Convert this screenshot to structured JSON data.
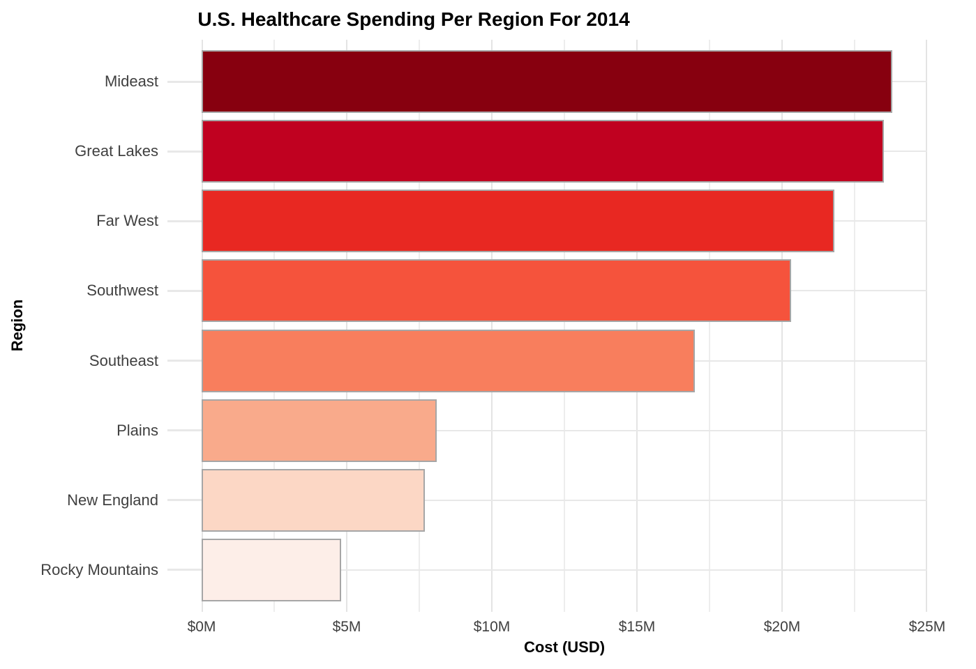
{
  "title": "U.S. Healthcare Spending Per Region For 2014",
  "chart_data": {
    "type": "bar",
    "orientation": "horizontal",
    "title": "U.S. Healthcare Spending Per Region For 2014",
    "xlabel": "Cost (USD)",
    "ylabel": "Region",
    "categories": [
      "Mideast",
      "Great Lakes",
      "Far West",
      "Southwest",
      "Southeast",
      "Plains",
      "New England",
      "Rocky Mountains"
    ],
    "values_million_usd": [
      23.8,
      23.5,
      21.8,
      20.3,
      17.0,
      8.1,
      7.7,
      4.8
    ],
    "bar_colors": [
      "#87000f",
      "#c00120",
      "#e82822",
      "#f5533c",
      "#f87e5d",
      "#f9aa8b",
      "#fcd7c5",
      "#fdeee8"
    ],
    "bar_edge_color": "#a6a6a6",
    "xlim": [
      0,
      25
    ],
    "x_tick_values": [
      0,
      5,
      10,
      15,
      20,
      25
    ],
    "x_tick_labels": [
      "$0M",
      "$5M",
      "$10M",
      "$15M",
      "$20M",
      "$25M"
    ],
    "x_minor_tick_values": [
      2.5,
      7.5,
      12.5,
      17.5,
      22.5
    ],
    "legend": "none",
    "grid": {
      "vertical_major": true,
      "vertical_minor": true,
      "horizontal_at_category_centers": true,
      "major_color": "#e4e4e4",
      "minor_color": "#ededed",
      "row_line_color": "#e8e8e8"
    },
    "text_color": "#404040",
    "background": "#ffffff"
  }
}
